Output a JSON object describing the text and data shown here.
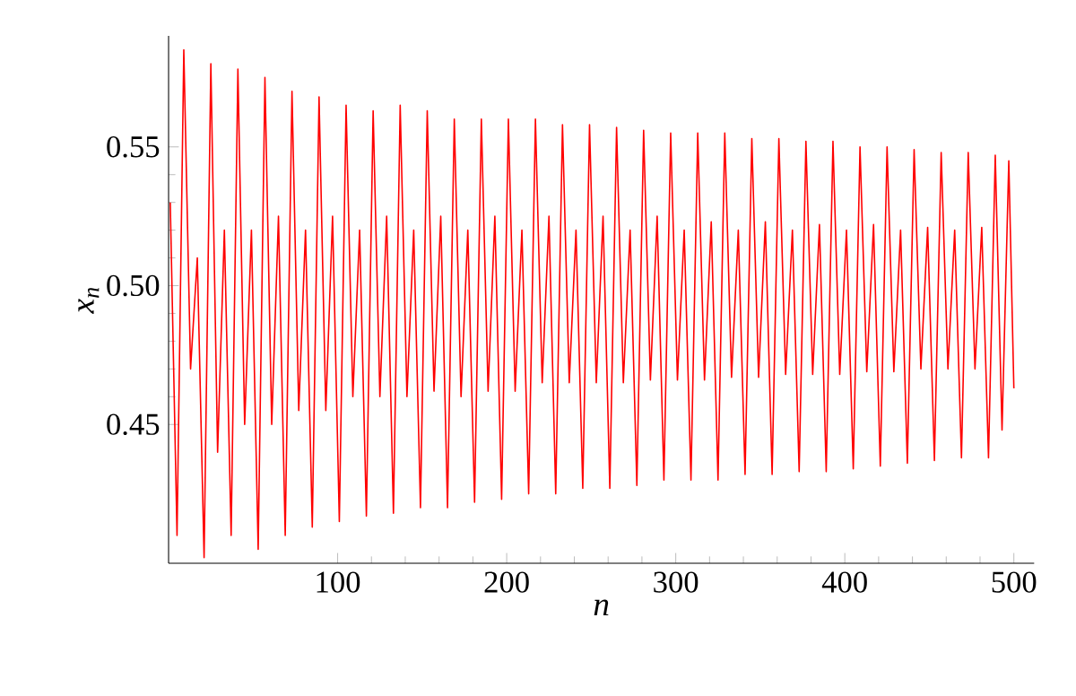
{
  "chart_data": {
    "type": "line",
    "xlabel": "n",
    "ylabel": "x$_{n}$",
    "xlim": [
      0,
      512
    ],
    "ylim": [
      0.4,
      0.59
    ],
    "xticks": [
      100,
      200,
      300,
      400,
      500
    ],
    "yticks": [
      {
        "value": 0.45,
        "label": "0.45"
      },
      {
        "value": 0.5,
        "label": "0.50"
      },
      {
        "value": 0.55,
        "label": "0.55"
      }
    ],
    "marker": "none",
    "line_style": "solid",
    "series": [
      {
        "color": "#ff0000",
        "x": [
          1,
          5,
          9,
          13,
          17,
          21,
          25,
          29,
          33,
          37,
          41,
          45,
          49,
          53,
          57,
          61,
          65,
          69,
          73,
          77,
          81,
          85,
          89,
          93,
          97,
          101,
          105,
          109,
          113,
          117,
          121,
          125,
          129,
          133,
          137,
          141,
          145,
          149,
          153,
          157,
          161,
          165,
          169,
          173,
          177,
          181,
          185,
          189,
          193,
          197,
          201,
          205,
          209,
          213,
          217,
          221,
          225,
          229,
          233,
          237,
          241,
          245,
          249,
          253,
          257,
          261,
          265,
          269,
          273,
          277,
          281,
          285,
          289,
          293,
          297,
          301,
          305,
          309,
          313,
          317,
          321,
          325,
          329,
          333,
          337,
          341,
          345,
          349,
          353,
          357,
          361,
          365,
          369,
          373,
          377,
          381,
          385,
          389,
          393,
          397,
          401,
          405,
          409,
          413,
          417,
          421,
          425,
          429,
          433,
          437,
          441,
          445,
          449,
          453,
          457,
          461,
          465,
          469,
          473,
          477,
          481,
          485,
          489,
          493,
          497,
          500
        ],
        "values": [
          0.53,
          0.41,
          0.585,
          0.47,
          0.51,
          0.402,
          0.58,
          0.44,
          0.52,
          0.41,
          0.578,
          0.45,
          0.52,
          0.405,
          0.575,
          0.45,
          0.525,
          0.41,
          0.57,
          0.455,
          0.52,
          0.413,
          0.568,
          0.455,
          0.525,
          0.415,
          0.565,
          0.46,
          0.52,
          0.417,
          0.563,
          0.46,
          0.525,
          0.418,
          0.565,
          0.46,
          0.52,
          0.42,
          0.563,
          0.462,
          0.525,
          0.42,
          0.56,
          0.46,
          0.52,
          0.422,
          0.56,
          0.462,
          0.525,
          0.423,
          0.56,
          0.462,
          0.52,
          0.425,
          0.56,
          0.465,
          0.525,
          0.425,
          0.558,
          0.465,
          0.52,
          0.427,
          0.558,
          0.465,
          0.525,
          0.427,
          0.557,
          0.465,
          0.52,
          0.428,
          0.556,
          0.466,
          0.525,
          0.43,
          0.555,
          0.466,
          0.52,
          0.43,
          0.555,
          0.466,
          0.523,
          0.43,
          0.555,
          0.467,
          0.52,
          0.432,
          0.553,
          0.467,
          0.523,
          0.432,
          0.553,
          0.468,
          0.52,
          0.433,
          0.552,
          0.468,
          0.522,
          0.433,
          0.552,
          0.468,
          0.52,
          0.434,
          0.55,
          0.469,
          0.522,
          0.435,
          0.55,
          0.469,
          0.52,
          0.436,
          0.549,
          0.47,
          0.521,
          0.437,
          0.548,
          0.47,
          0.52,
          0.438,
          0.548,
          0.47,
          0.521,
          0.438,
          0.547,
          0.448,
          0.545,
          0.463
        ]
      }
    ]
  }
}
